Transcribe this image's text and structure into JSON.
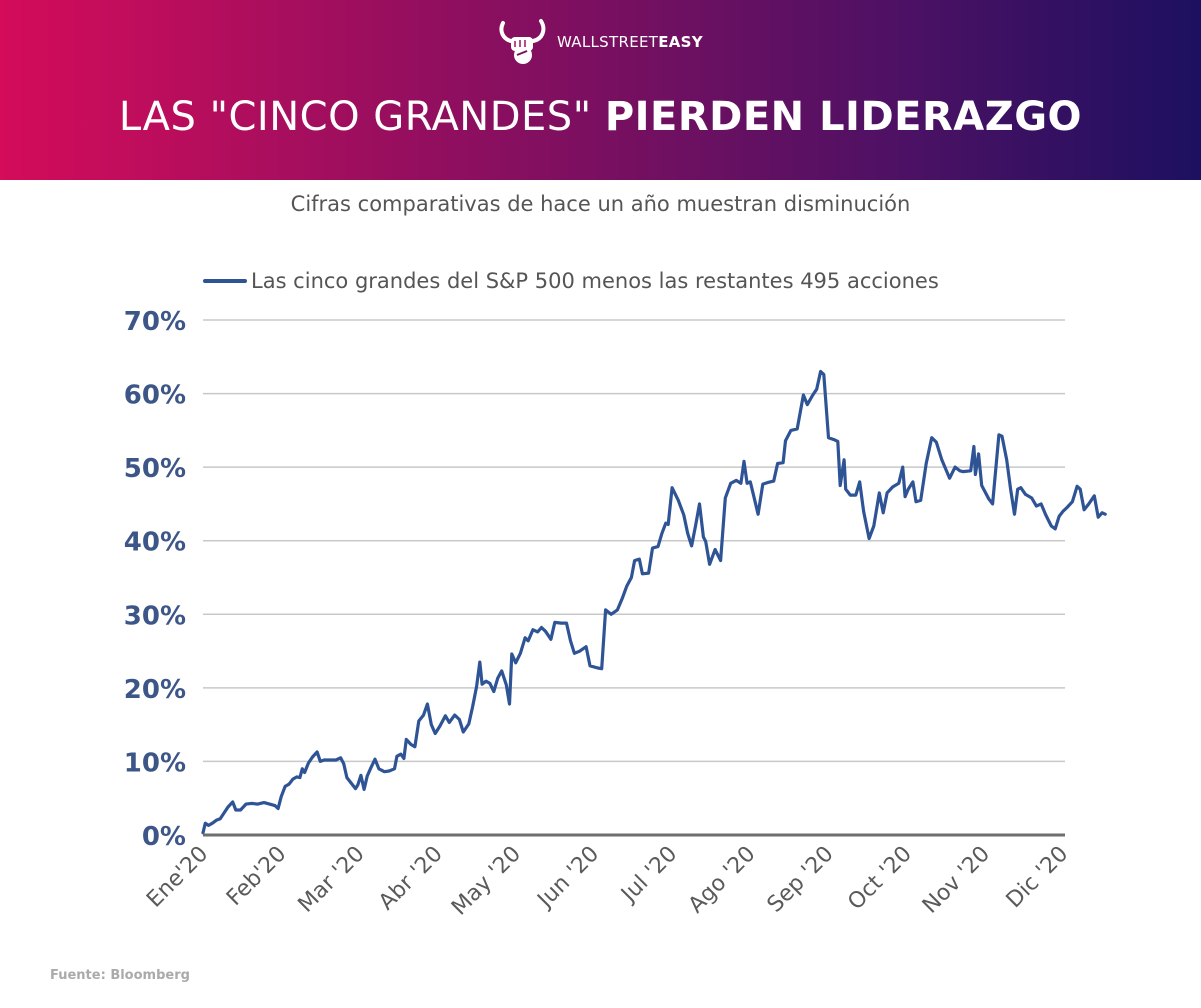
{
  "brand": {
    "logo_icon": "bull-fist-icon",
    "name_light": "WALLSTREET",
    "name_bold": "EASY"
  },
  "header": {
    "title_light": "LAS \"CINCO GRANDES\"",
    "title_bold": "PIERDEN LIDERAZGO",
    "gradient_start": "#d40c5a",
    "gradient_end": "#1d1060"
  },
  "source": "Fuente: Bloomberg",
  "chart_data": {
    "type": "line",
    "title": "LAS \"CINCO GRANDES\" PIERDEN LIDERAZGO",
    "subtitle": "Cifras comparativas de hace un año muestran disminución",
    "xlabel": "",
    "ylabel": "",
    "ylim": [
      0,
      70
    ],
    "yticks": [
      0,
      10,
      20,
      30,
      40,
      50,
      60,
      70
    ],
    "ytick_labels": [
      "0%",
      "10%",
      "20%",
      "30%",
      "40%",
      "50%",
      "60%",
      "70%"
    ],
    "categories": [
      "Ene'20",
      "Feb'20",
      "Mar '20",
      "Abr '20",
      "May '20",
      "Jun '20",
      "Jul '20",
      "Ago '20",
      "Sep '20",
      "Oct '20",
      "Nov '20",
      "Dic '20"
    ],
    "grid": true,
    "legend_position": "top",
    "series": [
      {
        "name": "Las cinco grandes del S&P 500 menos las restantes 495 acciones",
        "color": "#2f5496",
        "x_unit": "month index (0 = Ene'20, 11 = Dic'20)",
        "points": [
          [
            0.0,
            0.3
          ],
          [
            0.03,
            1.6
          ],
          [
            0.07,
            1.3
          ],
          [
            0.12,
            1.6
          ],
          [
            0.17,
            2.0
          ],
          [
            0.22,
            2.2
          ],
          [
            0.27,
            3.0
          ],
          [
            0.32,
            3.8
          ],
          [
            0.38,
            4.5
          ],
          [
            0.42,
            3.4
          ],
          [
            0.48,
            3.4
          ],
          [
            0.55,
            4.2
          ],
          [
            0.62,
            4.3
          ],
          [
            0.7,
            4.2
          ],
          [
            0.78,
            4.4
          ],
          [
            0.85,
            4.2
          ],
          [
            0.92,
            4.0
          ],
          [
            0.96,
            3.6
          ],
          [
            1.0,
            5.2
          ],
          [
            1.05,
            6.6
          ],
          [
            1.1,
            6.9
          ],
          [
            1.15,
            7.6
          ],
          [
            1.2,
            7.9
          ],
          [
            1.24,
            7.8
          ],
          [
            1.27,
            9.0
          ],
          [
            1.3,
            8.5
          ],
          [
            1.35,
            9.8
          ],
          [
            1.4,
            10.6
          ],
          [
            1.46,
            11.3
          ],
          [
            1.5,
            10.0
          ],
          [
            1.55,
            10.2
          ],
          [
            1.62,
            10.2
          ],
          [
            1.7,
            10.2
          ],
          [
            1.76,
            10.5
          ],
          [
            1.8,
            9.7
          ],
          [
            1.84,
            7.8
          ],
          [
            1.9,
            7.0
          ],
          [
            1.95,
            6.3
          ],
          [
            1.98,
            6.8
          ],
          [
            2.02,
            8.1
          ],
          [
            2.06,
            6.2
          ],
          [
            2.1,
            8.0
          ],
          [
            2.15,
            9.2
          ],
          [
            2.2,
            10.3
          ],
          [
            2.25,
            9.0
          ],
          [
            2.32,
            8.6
          ],
          [
            2.38,
            8.7
          ],
          [
            2.45,
            9.0
          ],
          [
            2.48,
            10.7
          ],
          [
            2.53,
            11.0
          ],
          [
            2.57,
            10.4
          ],
          [
            2.6,
            13.0
          ],
          [
            2.66,
            12.3
          ],
          [
            2.71,
            12.0
          ],
          [
            2.76,
            15.5
          ],
          [
            2.82,
            16.3
          ],
          [
            2.87,
            17.8
          ],
          [
            2.92,
            15.0
          ],
          [
            2.97,
            13.8
          ],
          [
            3.03,
            14.8
          ],
          [
            3.1,
            16.2
          ],
          [
            3.15,
            15.3
          ],
          [
            3.22,
            16.3
          ],
          [
            3.28,
            15.7
          ],
          [
            3.33,
            14.0
          ],
          [
            3.4,
            15.1
          ],
          [
            3.45,
            17.5
          ],
          [
            3.5,
            20.2
          ],
          [
            3.54,
            23.5
          ],
          [
            3.57,
            20.5
          ],
          [
            3.62,
            20.9
          ],
          [
            3.67,
            20.6
          ],
          [
            3.72,
            19.5
          ],
          [
            3.77,
            21.3
          ],
          [
            3.82,
            22.3
          ],
          [
            3.88,
            20.4
          ],
          [
            3.92,
            17.8
          ],
          [
            3.95,
            24.6
          ],
          [
            4.0,
            23.4
          ],
          [
            4.06,
            24.7
          ],
          [
            4.12,
            26.8
          ],
          [
            4.16,
            26.4
          ],
          [
            4.22,
            27.9
          ],
          [
            4.28,
            27.6
          ],
          [
            4.33,
            28.2
          ],
          [
            4.38,
            27.7
          ],
          [
            4.45,
            26.6
          ],
          [
            4.5,
            28.9
          ],
          [
            4.58,
            28.8
          ],
          [
            4.65,
            28.8
          ],
          [
            4.7,
            26.4
          ],
          [
            4.75,
            24.7
          ],
          [
            4.82,
            25.0
          ],
          [
            4.9,
            25.6
          ],
          [
            4.95,
            23.0
          ],
          [
            5.05,
            22.7
          ],
          [
            5.1,
            22.6
          ],
          [
            5.15,
            30.6
          ],
          [
            5.22,
            30.0
          ],
          [
            5.3,
            30.6
          ],
          [
            5.36,
            32.1
          ],
          [
            5.42,
            33.8
          ],
          [
            5.48,
            35.0
          ],
          [
            5.52,
            37.3
          ],
          [
            5.58,
            37.5
          ],
          [
            5.62,
            35.5
          ],
          [
            5.7,
            35.6
          ],
          [
            5.75,
            39.0
          ],
          [
            5.82,
            39.2
          ],
          [
            5.87,
            41.0
          ],
          [
            5.92,
            42.4
          ],
          [
            5.95,
            42.2
          ],
          [
            6.0,
            47.2
          ],
          [
            6.08,
            45.5
          ],
          [
            6.15,
            43.5
          ],
          [
            6.2,
            41.0
          ],
          [
            6.25,
            39.3
          ],
          [
            6.3,
            42.0
          ],
          [
            6.35,
            45.0
          ],
          [
            6.4,
            40.5
          ],
          [
            6.43,
            39.9
          ],
          [
            6.48,
            36.8
          ],
          [
            6.55,
            38.8
          ],
          [
            6.62,
            37.3
          ],
          [
            6.68,
            45.8
          ],
          [
            6.75,
            47.8
          ],
          [
            6.82,
            48.2
          ],
          [
            6.88,
            47.8
          ],
          [
            6.92,
            50.8
          ],
          [
            6.96,
            47.8
          ],
          [
            7.0,
            48.0
          ],
          [
            7.05,
            45.8
          ],
          [
            7.1,
            43.6
          ],
          [
            7.16,
            47.7
          ],
          [
            7.22,
            47.9
          ],
          [
            7.3,
            48.1
          ],
          [
            7.35,
            50.5
          ],
          [
            7.42,
            50.6
          ],
          [
            7.45,
            53.6
          ],
          [
            7.52,
            55.0
          ],
          [
            7.6,
            55.2
          ],
          [
            7.68,
            59.8
          ],
          [
            7.73,
            58.5
          ],
          [
            7.8,
            59.8
          ],
          [
            7.85,
            60.6
          ],
          [
            7.9,
            63.0
          ],
          [
            7.94,
            62.6
          ],
          [
            8.0,
            54.0
          ],
          [
            8.08,
            53.7
          ],
          [
            8.12,
            53.5
          ],
          [
            8.15,
            47.5
          ],
          [
            8.2,
            51.0
          ],
          [
            8.22,
            47.0
          ],
          [
            8.28,
            46.2
          ],
          [
            8.35,
            46.2
          ],
          [
            8.4,
            48.0
          ],
          [
            8.45,
            44.0
          ],
          [
            8.52,
            40.3
          ],
          [
            8.58,
            42.0
          ],
          [
            8.65,
            46.5
          ],
          [
            8.7,
            43.8
          ],
          [
            8.75,
            46.5
          ],
          [
            8.82,
            47.3
          ],
          [
            8.9,
            47.8
          ],
          [
            8.95,
            50.0
          ],
          [
            8.98,
            46.0
          ],
          [
            9.02,
            47.0
          ],
          [
            9.08,
            48.0
          ],
          [
            9.12,
            45.3
          ],
          [
            9.18,
            45.5
          ],
          [
            9.25,
            50.5
          ],
          [
            9.32,
            54.0
          ],
          [
            9.38,
            53.4
          ],
          [
            9.45,
            51.0
          ],
          [
            9.55,
            48.5
          ],
          [
            9.62,
            50.0
          ],
          [
            9.68,
            49.5
          ],
          [
            9.72,
            49.4
          ],
          [
            9.82,
            49.5
          ],
          [
            9.86,
            52.8
          ],
          [
            9.88,
            49.0
          ],
          [
            9.92,
            51.8
          ],
          [
            9.96,
            47.5
          ],
          [
            10.05,
            45.7
          ],
          [
            10.1,
            45.0
          ],
          [
            10.18,
            54.4
          ],
          [
            10.22,
            54.2
          ],
          [
            10.28,
            51.0
          ],
          [
            10.33,
            47.0
          ],
          [
            10.38,
            43.6
          ],
          [
            10.42,
            47.0
          ],
          [
            10.46,
            47.2
          ],
          [
            10.52,
            46.3
          ],
          [
            10.6,
            45.8
          ],
          [
            10.66,
            44.7
          ],
          [
            10.72,
            45.0
          ],
          [
            10.78,
            43.5
          ],
          [
            10.85,
            42.0
          ],
          [
            10.9,
            41.6
          ],
          [
            10.95,
            43.3
          ],
          [
            11.0,
            44.0
          ],
          [
            11.05,
            44.5
          ],
          [
            11.12,
            45.3
          ],
          [
            11.18,
            47.4
          ],
          [
            11.22,
            47.0
          ],
          [
            11.27,
            44.2
          ],
          [
            11.33,
            45.0
          ],
          [
            11.4,
            46.1
          ],
          [
            11.45,
            43.2
          ],
          [
            11.5,
            43.8
          ],
          [
            11.54,
            43.6
          ]
        ]
      }
    ]
  }
}
